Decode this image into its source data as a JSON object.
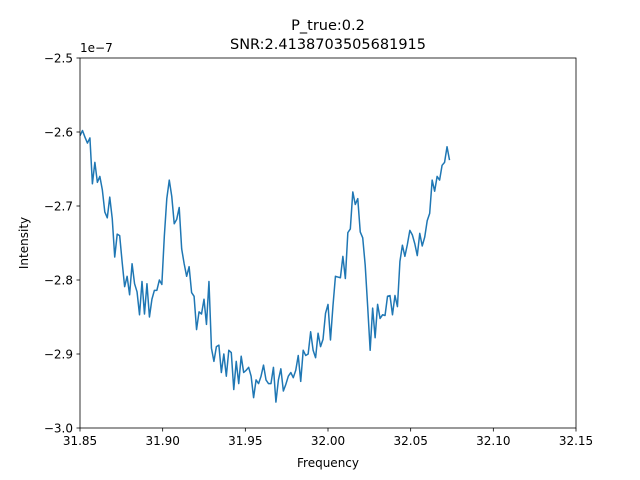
{
  "chart_data": {
    "type": "line",
    "title_line1": "P_true:0.2",
    "title_line2": "SNR:2.4138703505681915",
    "xlabel": "Frequency",
    "ylabel": "Intensity",
    "y_offset_label": "1e−7",
    "xlim": [
      31.85,
      32.15
    ],
    "ylim": [
      -3.0,
      -2.5
    ],
    "y_scale_factor": 1e-07,
    "x_ticks": [
      31.85,
      31.9,
      31.95,
      32.0,
      32.05,
      32.1,
      32.15
    ],
    "x_tick_labels": [
      "31.85",
      "31.90",
      "31.95",
      "32.00",
      "32.05",
      "32.10",
      "32.15"
    ],
    "y_ticks": [
      -3.0,
      -2.9,
      -2.8,
      -2.7,
      -2.6,
      -2.5
    ],
    "y_tick_labels": [
      "−3.0",
      "−2.9",
      "−2.8",
      "−2.7",
      "−2.6",
      "−2.5"
    ],
    "grid": false,
    "line_color": "#1f77b4",
    "series": [
      {
        "x_start": 31.85,
        "x_step": 0.0015,
        "values": [
          -2.605,
          -2.598,
          -2.607,
          -2.615,
          -2.608,
          -2.67,
          -2.641,
          -2.668,
          -2.66,
          -2.678,
          -2.708,
          -2.716,
          -2.688,
          -2.717,
          -2.769,
          -2.738,
          -2.74,
          -2.776,
          -2.809,
          -2.795,
          -2.82,
          -2.778,
          -2.805,
          -2.816,
          -2.847,
          -2.802,
          -2.846,
          -2.805,
          -2.85,
          -2.826,
          -2.814,
          -2.814,
          -2.8,
          -2.806,
          -2.741,
          -2.69,
          -2.665,
          -2.687,
          -2.724,
          -2.718,
          -2.702,
          -2.758,
          -2.778,
          -2.795,
          -2.782,
          -2.817,
          -2.822,
          -2.867,
          -2.843,
          -2.846,
          -2.826,
          -2.86,
          -2.802,
          -2.892,
          -2.91,
          -2.89,
          -2.888,
          -2.925,
          -2.9,
          -2.93,
          -2.895,
          -2.898,
          -2.948,
          -2.91,
          -2.94,
          -2.903,
          -2.925,
          -2.922,
          -2.918,
          -2.93,
          -2.959,
          -2.935,
          -2.94,
          -2.93,
          -2.915,
          -2.935,
          -2.94,
          -2.94,
          -2.918,
          -2.965,
          -2.935,
          -2.92,
          -2.95,
          -2.941,
          -2.93,
          -2.925,
          -2.932,
          -2.922,
          -2.902,
          -2.937,
          -2.895,
          -2.902,
          -2.9,
          -2.87,
          -2.895,
          -2.905,
          -2.872,
          -2.89,
          -2.88,
          -2.845,
          -2.833,
          -2.881,
          -2.835,
          -2.795,
          -2.796,
          -2.797,
          -2.768,
          -2.798,
          -2.736,
          -2.731,
          -2.681,
          -2.698,
          -2.69,
          -2.735,
          -2.743,
          -2.78,
          -2.836,
          -2.895,
          -2.838,
          -2.878,
          -2.833,
          -2.852,
          -2.847,
          -2.848,
          -2.822,
          -2.821,
          -2.847,
          -2.821,
          -2.836,
          -2.775,
          -2.753,
          -2.768,
          -2.752,
          -2.733,
          -2.739,
          -2.751,
          -2.767,
          -2.737,
          -2.754,
          -2.742,
          -2.72,
          -2.71,
          -2.665,
          -2.68,
          -2.66,
          -2.665,
          -2.645,
          -2.641,
          -2.62,
          -2.638
        ]
      }
    ]
  }
}
